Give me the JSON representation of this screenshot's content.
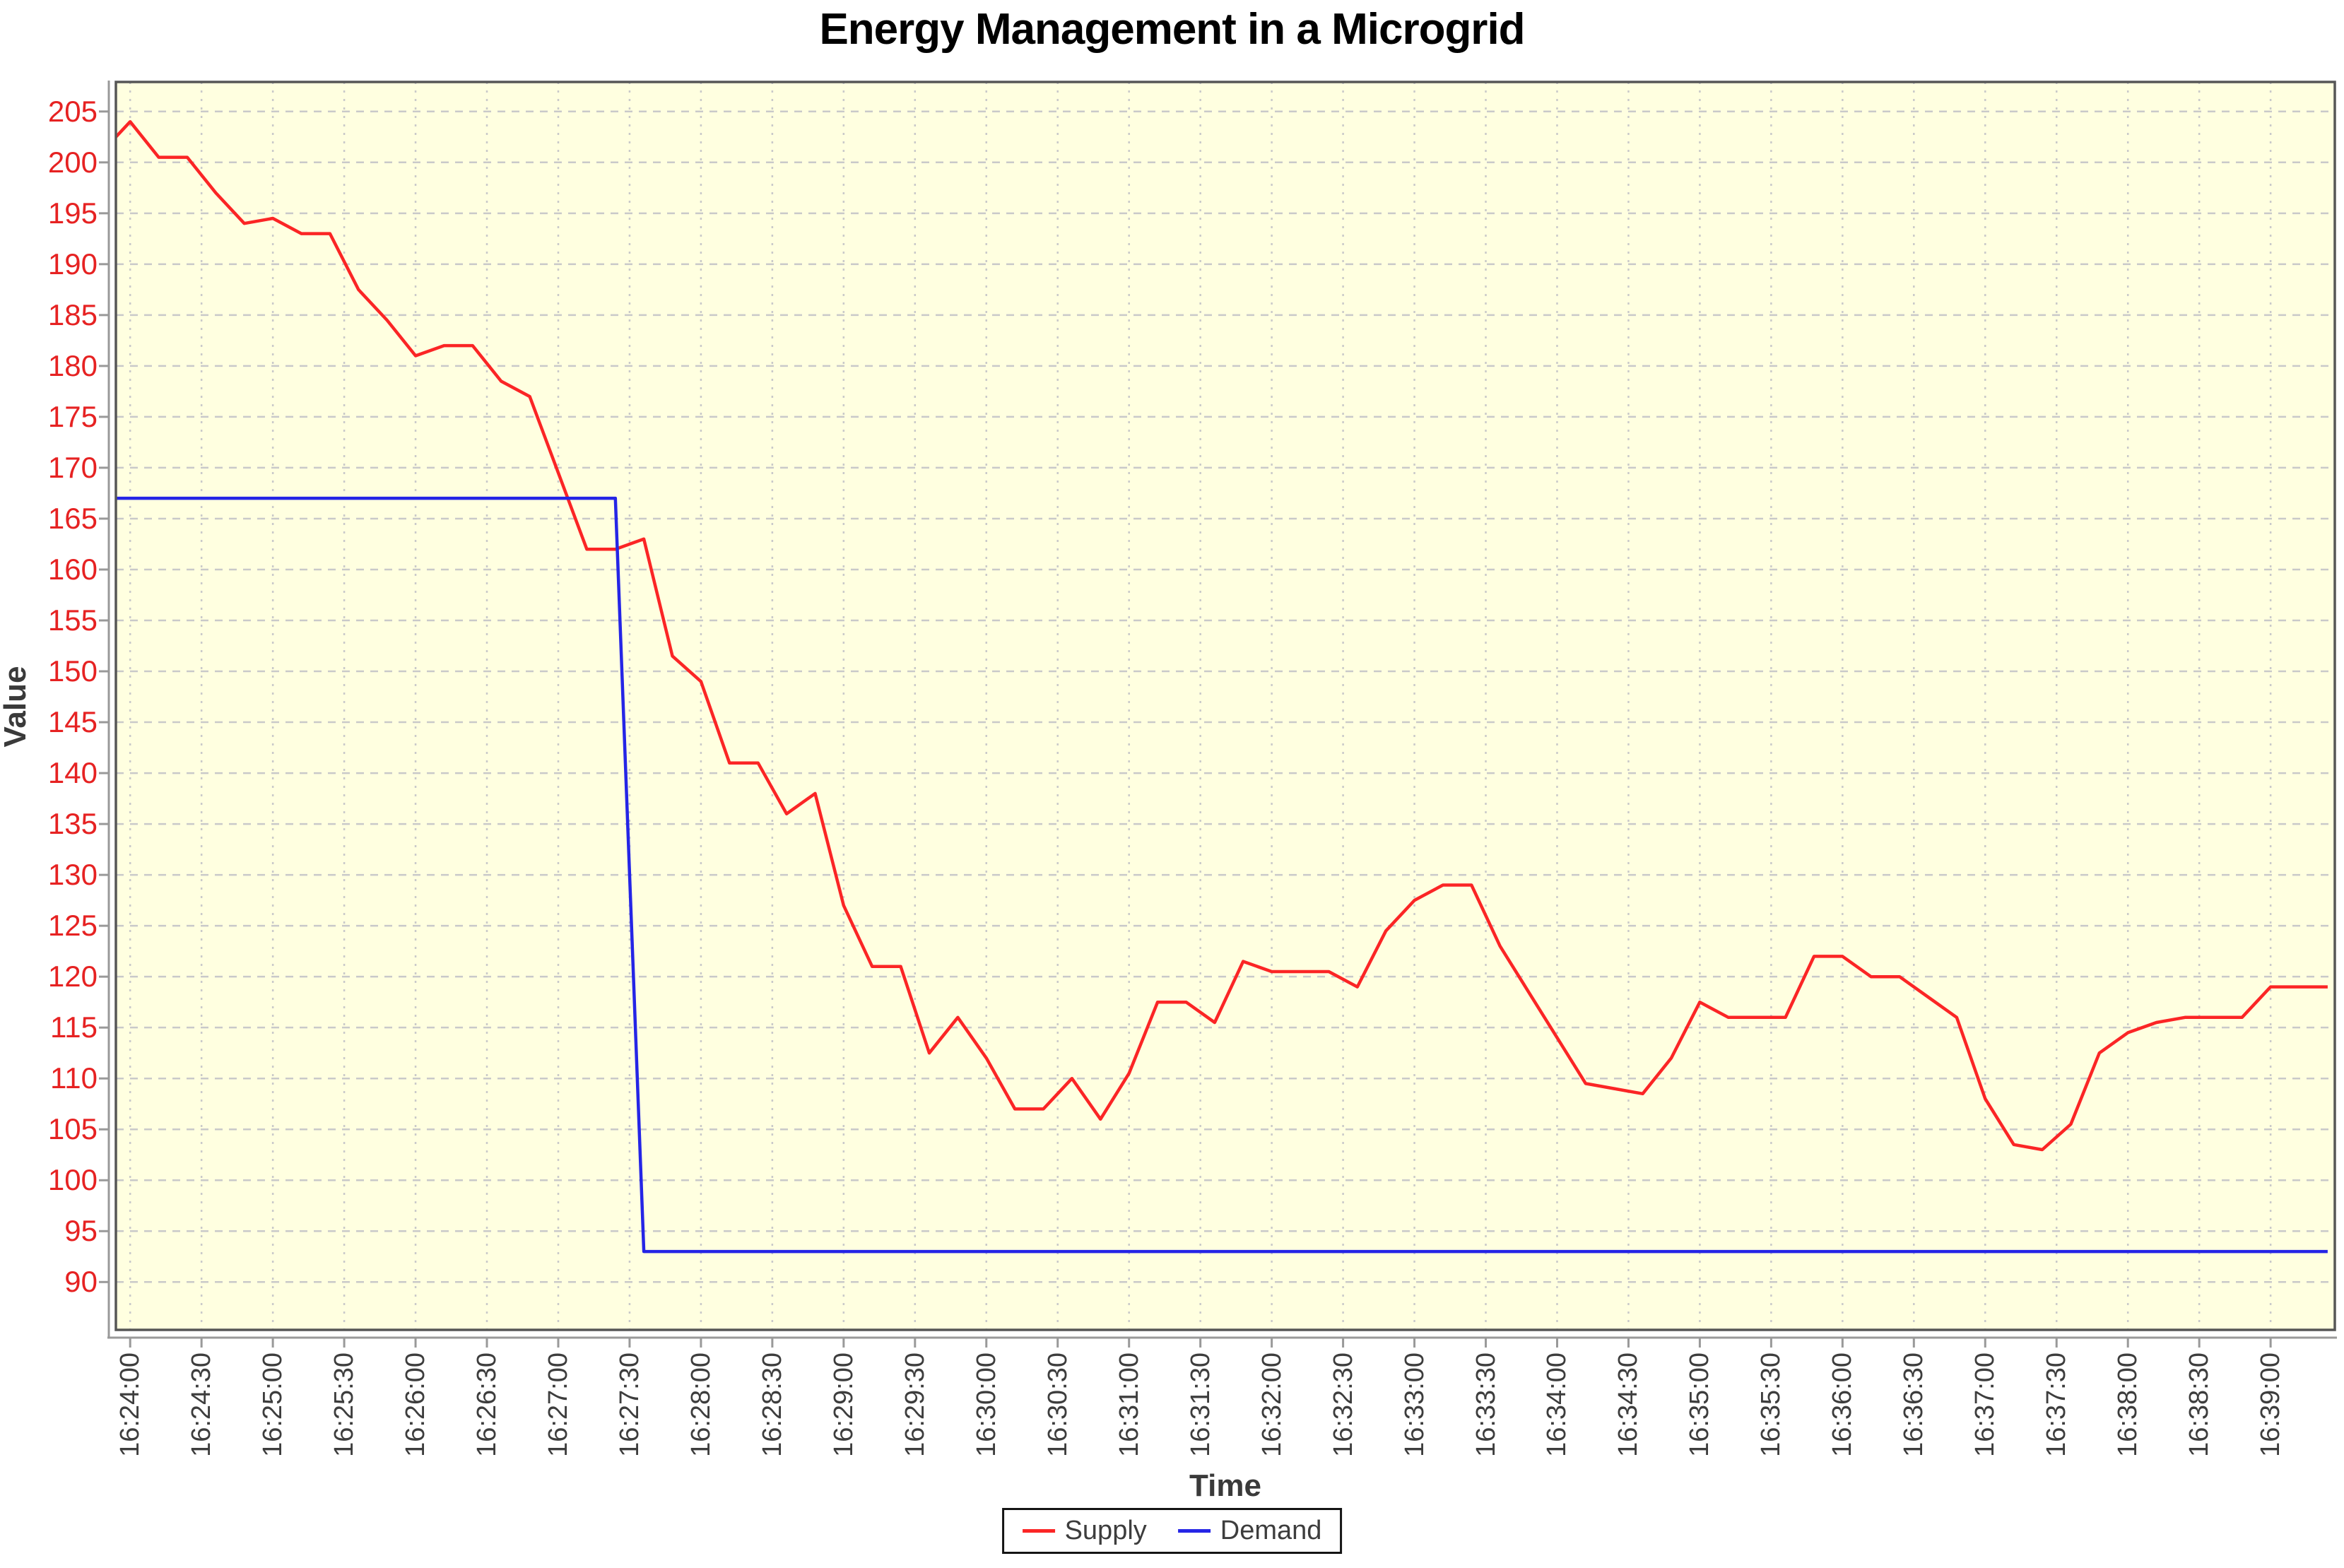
{
  "title": "Energy Management in a Microgrid",
  "axes": {
    "x_label": "Time",
    "y_label": "Value"
  },
  "legend": [
    {
      "label": "Supply",
      "color": "#fb2525"
    },
    {
      "label": "Demand",
      "color": "#2525e6"
    }
  ],
  "colors": {
    "plot_background": "#ffffe0",
    "grid": "#c9c9c9",
    "plot_border": "#565656",
    "axis_line": "#999999",
    "y_tick_text": "#e62222",
    "x_tick_text": "#3d3d3d",
    "supply": "#fb2525",
    "demand": "#2525e6"
  },
  "chart_data": {
    "type": "line",
    "title": "Energy Management in a Microgrid",
    "xlabel": "Time",
    "ylabel": "Value",
    "grid": true,
    "legend_position": "bottom",
    "plot_bg": "#ffffe0",
    "ylim": [
      85.3,
      207.9
    ],
    "xlim": [
      "16:23:54",
      "16:39:27"
    ],
    "y_ticks": [
      90,
      95,
      100,
      105,
      110,
      115,
      120,
      125,
      130,
      135,
      140,
      145,
      150,
      155,
      160,
      165,
      170,
      175,
      180,
      185,
      190,
      195,
      200,
      205
    ],
    "x_ticks": [
      "16:24:00",
      "16:24:30",
      "16:25:00",
      "16:25:30",
      "16:26:00",
      "16:26:30",
      "16:27:00",
      "16:27:30",
      "16:28:00",
      "16:28:30",
      "16:29:00",
      "16:29:30",
      "16:30:00",
      "16:30:30",
      "16:31:00",
      "16:31:30",
      "16:32:00",
      "16:32:30",
      "16:33:00",
      "16:33:30",
      "16:34:00",
      "16:34:30",
      "16:35:00",
      "16:35:30",
      "16:36:00",
      "16:36:30",
      "16:37:00",
      "16:37:30",
      "16:38:00",
      "16:38:30",
      "16:39:00"
    ],
    "series": [
      {
        "name": "Supply",
        "color": "#fb2525",
        "points": [
          [
            "16:23:48",
            201
          ],
          [
            "16:24:00",
            204
          ],
          [
            "16:24:12",
            200.5
          ],
          [
            "16:24:24",
            200.5
          ],
          [
            "16:24:36",
            197
          ],
          [
            "16:24:48",
            194
          ],
          [
            "16:25:00",
            194.5
          ],
          [
            "16:25:12",
            193
          ],
          [
            "16:25:24",
            193
          ],
          [
            "16:25:36",
            187.5
          ],
          [
            "16:25:48",
            184.5
          ],
          [
            "16:26:00",
            181
          ],
          [
            "16:26:12",
            182
          ],
          [
            "16:26:24",
            182
          ],
          [
            "16:26:36",
            178.5
          ],
          [
            "16:26:48",
            177
          ],
          [
            "16:27:00",
            169.5
          ],
          [
            "16:27:12",
            162
          ],
          [
            "16:27:24",
            162
          ],
          [
            "16:27:36",
            163
          ],
          [
            "16:27:48",
            151.5
          ],
          [
            "16:28:00",
            149
          ],
          [
            "16:28:12",
            141
          ],
          [
            "16:28:24",
            141
          ],
          [
            "16:28:36",
            136
          ],
          [
            "16:28:48",
            138
          ],
          [
            "16:29:00",
            127
          ],
          [
            "16:29:12",
            121
          ],
          [
            "16:29:24",
            121
          ],
          [
            "16:29:36",
            112.5
          ],
          [
            "16:29:48",
            116
          ],
          [
            "16:30:00",
            112
          ],
          [
            "16:30:12",
            107
          ],
          [
            "16:30:24",
            107
          ],
          [
            "16:30:36",
            110
          ],
          [
            "16:30:48",
            106
          ],
          [
            "16:31:00",
            110.5
          ],
          [
            "16:31:12",
            117.5
          ],
          [
            "16:31:24",
            117.5
          ],
          [
            "16:31:36",
            115.5
          ],
          [
            "16:31:48",
            121.5
          ],
          [
            "16:32:00",
            120.5
          ],
          [
            "16:32:12",
            120.5
          ],
          [
            "16:32:24",
            120.5
          ],
          [
            "16:32:36",
            119
          ],
          [
            "16:32:48",
            124.5
          ],
          [
            "16:33:00",
            127.5
          ],
          [
            "16:33:12",
            129
          ],
          [
            "16:33:24",
            129
          ],
          [
            "16:33:36",
            123
          ],
          [
            "16:33:48",
            118.5
          ],
          [
            "16:34:00",
            114
          ],
          [
            "16:34:12",
            109.5
          ],
          [
            "16:34:24",
            109
          ],
          [
            "16:34:36",
            108.5
          ],
          [
            "16:34:48",
            112
          ],
          [
            "16:35:00",
            117.5
          ],
          [
            "16:35:12",
            116
          ],
          [
            "16:35:24",
            116
          ],
          [
            "16:35:36",
            116
          ],
          [
            "16:35:48",
            122
          ],
          [
            "16:36:00",
            122
          ],
          [
            "16:36:12",
            120
          ],
          [
            "16:36:24",
            120
          ],
          [
            "16:36:36",
            118
          ],
          [
            "16:36:48",
            116
          ],
          [
            "16:37:00",
            108
          ],
          [
            "16:37:12",
            103.5
          ],
          [
            "16:37:24",
            103
          ],
          [
            "16:37:36",
            105.5
          ],
          [
            "16:37:48",
            112.5
          ],
          [
            "16:38:00",
            114.5
          ],
          [
            "16:38:12",
            115.5
          ],
          [
            "16:38:24",
            116
          ],
          [
            "16:38:36",
            116
          ],
          [
            "16:38:48",
            116
          ],
          [
            "16:39:00",
            119
          ],
          [
            "16:39:12",
            119
          ],
          [
            "16:39:24",
            119
          ]
        ]
      },
      {
        "name": "Demand",
        "color": "#2525e6",
        "points": [
          [
            "16:23:48",
            167
          ],
          [
            "16:27:24",
            167
          ],
          [
            "16:27:36",
            93
          ],
          [
            "16:39:24",
            93
          ]
        ]
      }
    ]
  }
}
